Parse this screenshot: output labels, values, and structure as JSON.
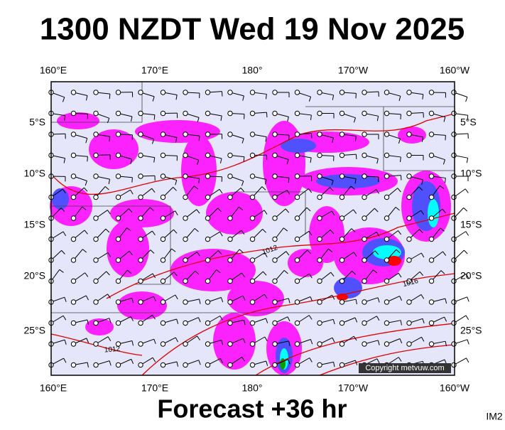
{
  "header": {
    "title": "1300 NZDT Wed 19 Nov 2025"
  },
  "axes": {
    "top": [
      "160°E",
      "170°E",
      "180°",
      "170°W",
      "160°W"
    ],
    "bottom": [
      "160°E",
      "170°E",
      "180°",
      "170°W",
      "160°W"
    ],
    "left": [
      "5°S",
      "10°S",
      "15°S",
      "20°S",
      "25°S"
    ],
    "right": [
      "5°S",
      "10°S",
      "15°S",
      "20°S",
      "25°S"
    ]
  },
  "isobar_labels": [
    "1012",
    "1016",
    "1012"
  ],
  "copyright": "Copyright metvuw.com",
  "footer": "Forecast +36 hr",
  "image_id": "IM2"
}
